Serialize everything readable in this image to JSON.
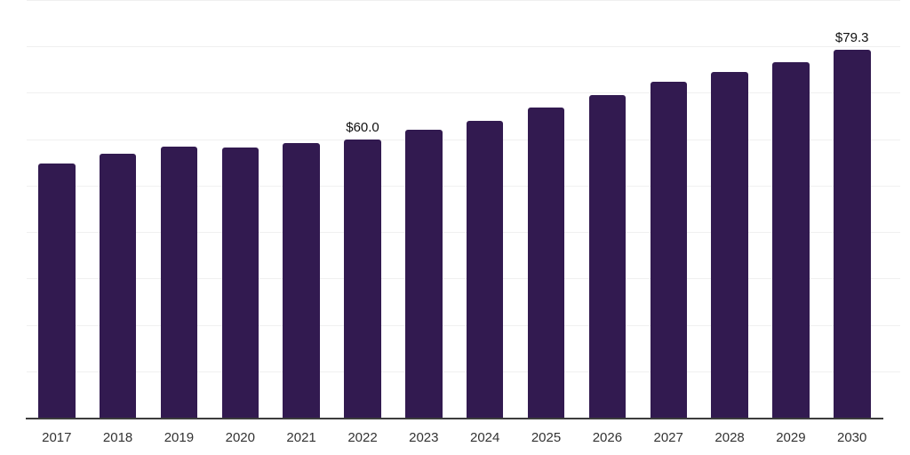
{
  "chart_data": {
    "type": "bar",
    "title": "",
    "xlabel": "",
    "ylabel": "",
    "categories": [
      "2017",
      "2018",
      "2019",
      "2020",
      "2021",
      "2022",
      "2023",
      "2024",
      "2025",
      "2026",
      "2027",
      "2028",
      "2029",
      "2030"
    ],
    "values": [
      54.7,
      56.9,
      58.5,
      58.3,
      59.2,
      60.0,
      62.0,
      64.0,
      66.9,
      69.6,
      72.4,
      74.5,
      76.6,
      79.3
    ],
    "point_labels": {
      "2022": "$60.0",
      "2030": "$79.3"
    },
    "ylim": [
      0,
      90
    ],
    "gridline_values": [
      10,
      20,
      30,
      40,
      50,
      60,
      70,
      80,
      90
    ],
    "grid": "horizontal",
    "legend": "none",
    "colors": {
      "bar": "#321a50",
      "gridline": "#f0f0f0",
      "axis_line": "#3d3d3d",
      "tick_label": "#333333",
      "data_label": "#111111",
      "background": "#ffffff"
    }
  }
}
